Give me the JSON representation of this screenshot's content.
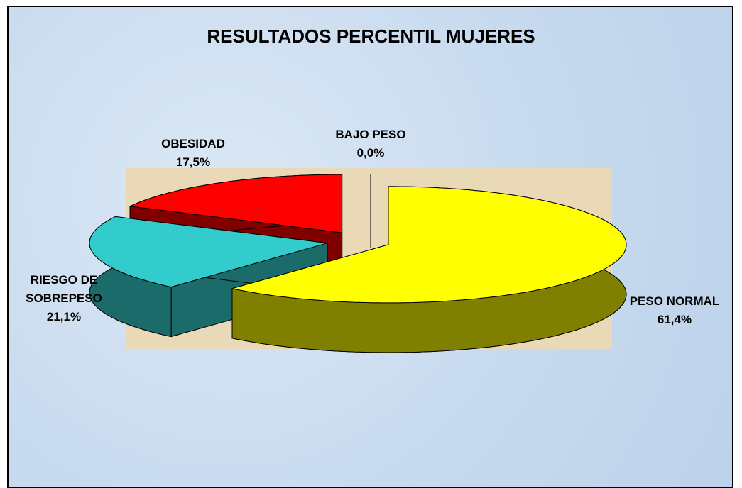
{
  "chart_data": {
    "type": "pie3d",
    "title": "RESULTADOS PERCENTIL MUJERES",
    "categories": [
      "PESO NORMAL",
      "RIESGO DE SOBREPESO",
      "OBESIDAD",
      "BAJO PESO"
    ],
    "values": [
      61.4,
      21.1,
      17.5,
      0.0
    ],
    "value_labels": [
      "61,4%",
      "21,1%",
      "17,5%",
      "0,0%"
    ],
    "colors": [
      "#ffff00",
      "#33cccc",
      "#ff0000",
      "#9999ff"
    ],
    "side_colors": [
      "#808000",
      "#1c6b6b",
      "#800000",
      "#4d4d80"
    ]
  }
}
